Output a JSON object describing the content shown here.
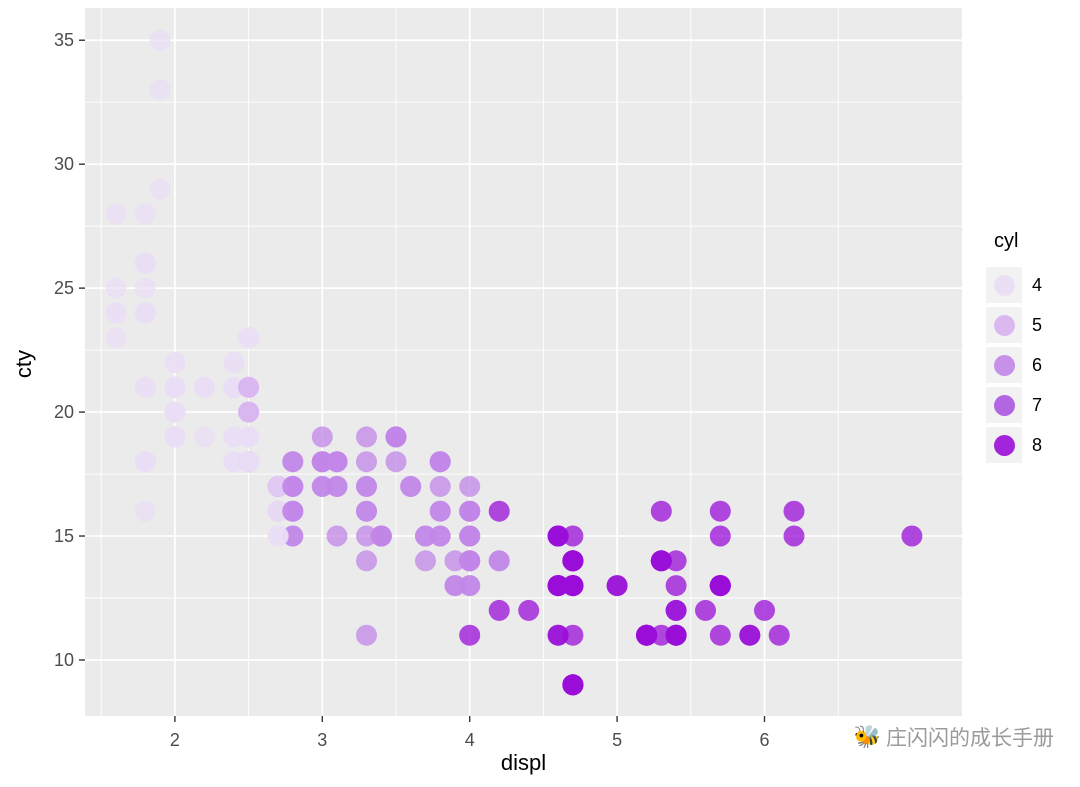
{
  "figure": {
    "background": "#FFFFFF",
    "panel_background": "#EBEBEB",
    "grid_color": "#FFFFFF",
    "axis_text_color": "#4D4D4D",
    "tick_color": "#333333"
  },
  "chart_data": {
    "type": "scatter",
    "title": "",
    "xlabel": "displ",
    "ylabel": "cty",
    "xlim": [
      1.39,
      7.34
    ],
    "ylim": [
      7.74,
      36.3
    ],
    "x_ticks": [
      2,
      3,
      4,
      5,
      6
    ],
    "y_ticks": [
      10,
      15,
      20,
      25,
      30,
      35
    ],
    "x_minor": [
      1.5,
      2.5,
      3.5,
      4.5,
      5.5,
      6.5
    ],
    "y_minor": [
      12.5,
      17.5,
      22.5,
      27.5,
      32.5
    ],
    "grid": true,
    "point_radius": 10.5,
    "point_opacity": 0.75,
    "color_scale": {
      "4": "#EADDF6",
      "5": "#D8B3F0",
      "6": "#C286E8",
      "7": "#AB57DF",
      "8": "#9A0DD8"
    },
    "legend": {
      "title": "cyl",
      "position": "right",
      "entries": [
        {
          "label": "4",
          "color": "#EADDF6"
        },
        {
          "label": "5",
          "color": "#D8B3F0"
        },
        {
          "label": "6",
          "color": "#C286E8"
        },
        {
          "label": "7",
          "color": "#AB57DF"
        },
        {
          "label": "8",
          "color": "#9A0DD8"
        }
      ]
    },
    "points_format": [
      "displ",
      "cty",
      "cyl"
    ],
    "points": [
      [
        1.8,
        18,
        4
      ],
      [
        1.8,
        21,
        4
      ],
      [
        2,
        20,
        4
      ],
      [
        2,
        21,
        4
      ],
      [
        2.8,
        16,
        6
      ],
      [
        2.8,
        18,
        6
      ],
      [
        3.1,
        18,
        6
      ],
      [
        1.8,
        18,
        4
      ],
      [
        1.8,
        16,
        4
      ],
      [
        2,
        20,
        4
      ],
      [
        2,
        19,
        4
      ],
      [
        2.8,
        15,
        6
      ],
      [
        2.8,
        17,
        6
      ],
      [
        3.1,
        17,
        6
      ],
      [
        3.1,
        15,
        6
      ],
      [
        2.8,
        15,
        6
      ],
      [
        3.1,
        17,
        6
      ],
      [
        4.2,
        16,
        8
      ],
      [
        5.3,
        14,
        8
      ],
      [
        5.3,
        11,
        8
      ],
      [
        5.3,
        14,
        8
      ],
      [
        5.7,
        13,
        8
      ],
      [
        6,
        12,
        8
      ],
      [
        5.7,
        16,
        8
      ],
      [
        5.7,
        15,
        8
      ],
      [
        6.2,
        16,
        8
      ],
      [
        6.2,
        15,
        8
      ],
      [
        7,
        15,
        8
      ],
      [
        5.3,
        14,
        8
      ],
      [
        5.7,
        11,
        8
      ],
      [
        2.4,
        19,
        4
      ],
      [
        2.4,
        22,
        4
      ],
      [
        3.1,
        18,
        6
      ],
      [
        3.5,
        18,
        6
      ],
      [
        3.6,
        17,
        6
      ],
      [
        2.4,
        18,
        4
      ],
      [
        3,
        17,
        6
      ],
      [
        3.3,
        16,
        6
      ],
      [
        3.3,
        16,
        6
      ],
      [
        3.3,
        17,
        6
      ],
      [
        3.3,
        17,
        6
      ],
      [
        3.3,
        11,
        6
      ],
      [
        3.8,
        15,
        6
      ],
      [
        3.8,
        15,
        6
      ],
      [
        3.8,
        16,
        6
      ],
      [
        4,
        16,
        6
      ],
      [
        3.7,
        15,
        6
      ],
      [
        3.7,
        14,
        6
      ],
      [
        3.9,
        13,
        6
      ],
      [
        3.9,
        14,
        6
      ],
      [
        4.7,
        14,
        8
      ],
      [
        4.7,
        14,
        8
      ],
      [
        4.7,
        9,
        8
      ],
      [
        5.2,
        11,
        8
      ],
      [
        5.2,
        11,
        8
      ],
      [
        3.9,
        13,
        6
      ],
      [
        4.7,
        13,
        8
      ],
      [
        4.7,
        9,
        8
      ],
      [
        4.7,
        13,
        8
      ],
      [
        5.2,
        11,
        8
      ],
      [
        5.7,
        13,
        8
      ],
      [
        5.9,
        11,
        8
      ],
      [
        4.7,
        13,
        8
      ],
      [
        4.7,
        13,
        8
      ],
      [
        4.7,
        9,
        8
      ],
      [
        4.7,
        13,
        8
      ],
      [
        4.7,
        13,
        8
      ],
      [
        4.7,
        9,
        8
      ],
      [
        5.2,
        11,
        8
      ],
      [
        5.2,
        11,
        8
      ],
      [
        5.7,
        13,
        8
      ],
      [
        5.9,
        11,
        8
      ],
      [
        4.6,
        11,
        8
      ],
      [
        5.4,
        11,
        8
      ],
      [
        5.4,
        12,
        8
      ],
      [
        4,
        14,
        6
      ],
      [
        4,
        15,
        6
      ],
      [
        4,
        14,
        6
      ],
      [
        4,
        13,
        6
      ],
      [
        4.6,
        13,
        8
      ],
      [
        5,
        13,
        8
      ],
      [
        4.2,
        14,
        6
      ],
      [
        4.2,
        14,
        6
      ],
      [
        4.6,
        13,
        8
      ],
      [
        4.6,
        13,
        8
      ],
      [
        4.6,
        13,
        8
      ],
      [
        5.4,
        11,
        8
      ],
      [
        5.4,
        13,
        8
      ],
      [
        3.8,
        18,
        6
      ],
      [
        3.8,
        18,
        6
      ],
      [
        4,
        17,
        6
      ],
      [
        4,
        16,
        6
      ],
      [
        4.6,
        15,
        8
      ],
      [
        4.6,
        15,
        8
      ],
      [
        4.6,
        15,
        8
      ],
      [
        4.6,
        15,
        8
      ],
      [
        5.4,
        14,
        8
      ],
      [
        1.6,
        28,
        4
      ],
      [
        1.6,
        24,
        4
      ],
      [
        1.6,
        25,
        4
      ],
      [
        1.6,
        23,
        4
      ],
      [
        1.6,
        24,
        4
      ],
      [
        1.8,
        26,
        4
      ],
      [
        1.8,
        25,
        4
      ],
      [
        1.8,
        24,
        4
      ],
      [
        2,
        21,
        4
      ],
      [
        2.4,
        18,
        4
      ],
      [
        2.4,
        18,
        4
      ],
      [
        2.4,
        21,
        4
      ],
      [
        2.4,
        21,
        4
      ],
      [
        2.5,
        18,
        6
      ],
      [
        2.5,
        18,
        6
      ],
      [
        3.3,
        19,
        6
      ],
      [
        2,
        19,
        4
      ],
      [
        2,
        19,
        4
      ],
      [
        2,
        20,
        4
      ],
      [
        2,
        20,
        4
      ],
      [
        2.7,
        17,
        6
      ],
      [
        2.7,
        16,
        6
      ],
      [
        2.7,
        17,
        6
      ],
      [
        3,
        17,
        6
      ],
      [
        3.7,
        15,
        6
      ],
      [
        4,
        15,
        6
      ],
      [
        4.7,
        14,
        8
      ],
      [
        4.7,
        9,
        8
      ],
      [
        4.7,
        14,
        8
      ],
      [
        5.7,
        13,
        8
      ],
      [
        6.1,
        11,
        8
      ],
      [
        4,
        11,
        8
      ],
      [
        4.2,
        12,
        8
      ],
      [
        4.4,
        12,
        8
      ],
      [
        4.6,
        11,
        8
      ],
      [
        5.4,
        11,
        8
      ],
      [
        5.4,
        11,
        8
      ],
      [
        5.4,
        12,
        8
      ],
      [
        4,
        14,
        6
      ],
      [
        4,
        13,
        6
      ],
      [
        4.6,
        13,
        8
      ],
      [
        5,
        13,
        8
      ],
      [
        2.4,
        21,
        4
      ],
      [
        2.4,
        19,
        4
      ],
      [
        2.5,
        23,
        4
      ],
      [
        2.5,
        23,
        4
      ],
      [
        3.5,
        19,
        6
      ],
      [
        3.5,
        19,
        6
      ],
      [
        3,
        18,
        6
      ],
      [
        3,
        19,
        6
      ],
      [
        3.5,
        19,
        6
      ],
      [
        3.3,
        14,
        6
      ],
      [
        3.3,
        15,
        6
      ],
      [
        4,
        14,
        6
      ],
      [
        5.6,
        12,
        8
      ],
      [
        3.1,
        18,
        6
      ],
      [
        3.8,
        16,
        6
      ],
      [
        3.8,
        17,
        6
      ],
      [
        3.8,
        18,
        6
      ],
      [
        5.3,
        16,
        8
      ],
      [
        2.5,
        18,
        4
      ],
      [
        2.5,
        18,
        4
      ],
      [
        2.5,
        20,
        4
      ],
      [
        2.5,
        19,
        4
      ],
      [
        2.5,
        20,
        4
      ],
      [
        2.5,
        18,
        4
      ],
      [
        2.2,
        21,
        4
      ],
      [
        2.2,
        19,
        4
      ],
      [
        2.5,
        19,
        4
      ],
      [
        2.5,
        19,
        4
      ],
      [
        2.5,
        20,
        4
      ],
      [
        2.5,
        20,
        4
      ],
      [
        2.5,
        19,
        4
      ],
      [
        2.5,
        20,
        4
      ],
      [
        2.7,
        15,
        4
      ],
      [
        2.7,
        16,
        4
      ],
      [
        3.4,
        15,
        6
      ],
      [
        3.4,
        15,
        6
      ],
      [
        4,
        16,
        6
      ],
      [
        4.7,
        14,
        8
      ],
      [
        2.2,
        21,
        4
      ],
      [
        2.2,
        21,
        4
      ],
      [
        2.4,
        21,
        4
      ],
      [
        2.4,
        21,
        4
      ],
      [
        3,
        18,
        6
      ],
      [
        3,
        18,
        6
      ],
      [
        3.5,
        19,
        6
      ],
      [
        2.2,
        21,
        4
      ],
      [
        2.2,
        21,
        4
      ],
      [
        2.4,
        21,
        4
      ],
      [
        2.4,
        22,
        4
      ],
      [
        3,
        18,
        6
      ],
      [
        3,
        18,
        6
      ],
      [
        3.3,
        18,
        6
      ],
      [
        1.8,
        24,
        4
      ],
      [
        1.8,
        24,
        4
      ],
      [
        1.8,
        26,
        4
      ],
      [
        1.8,
        28,
        4
      ],
      [
        1.8,
        26,
        4
      ],
      [
        4.7,
        11,
        8
      ],
      [
        5.7,
        13,
        8
      ],
      [
        2.7,
        15,
        4
      ],
      [
        2.7,
        16,
        4
      ],
      [
        2.7,
        17,
        4
      ],
      [
        3.4,
        15,
        6
      ],
      [
        3.4,
        15,
        6
      ],
      [
        4,
        15,
        6
      ],
      [
        4,
        16,
        6
      ],
      [
        4.7,
        15,
        8
      ],
      [
        4.7,
        13,
        8
      ],
      [
        5.7,
        13,
        8
      ],
      [
        2,
        21,
        4
      ],
      [
        2,
        19,
        4
      ],
      [
        2,
        21,
        4
      ],
      [
        2,
        22,
        4
      ],
      [
        2.8,
        17,
        6
      ],
      [
        1.9,
        33,
        4
      ],
      [
        2,
        21,
        4
      ],
      [
        2,
        19,
        4
      ],
      [
        2,
        22,
        4
      ],
      [
        2,
        21,
        4
      ],
      [
        2.5,
        21,
        5
      ],
      [
        2.5,
        21,
        5
      ],
      [
        2.8,
        16,
        6
      ],
      [
        2.8,
        17,
        6
      ],
      [
        1.9,
        35,
        4
      ],
      [
        1.9,
        29,
        4
      ],
      [
        2,
        21,
        4
      ],
      [
        2,
        19,
        4
      ],
      [
        2.5,
        20,
        5
      ],
      [
        2.5,
        20,
        5
      ],
      [
        1.8,
        21,
        4
      ],
      [
        1.8,
        18,
        4
      ],
      [
        2,
        19,
        4
      ],
      [
        2,
        21,
        4
      ],
      [
        2.8,
        16,
        6
      ],
      [
        2.8,
        18,
        6
      ],
      [
        3.6,
        17,
        6
      ]
    ]
  },
  "watermark": {
    "icon": "🐝",
    "text": "庄闪闪的成长手册",
    "color": "#9B9B9B"
  }
}
